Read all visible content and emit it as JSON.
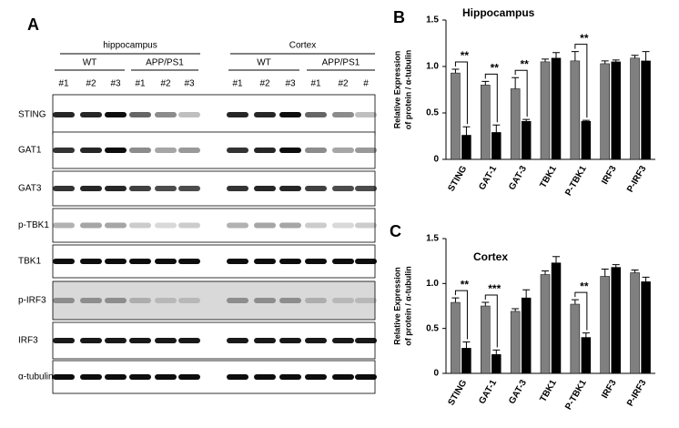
{
  "blot": {
    "panel_label": "A",
    "groups": [
      {
        "name": "hippocampus",
        "subgroups": [
          {
            "name": "WT",
            "lanes": [
              "#1",
              "#2",
              "#3"
            ]
          },
          {
            "name": "APP/PS1",
            "lanes": [
              "#1",
              "#2",
              "#3"
            ]
          }
        ]
      },
      {
        "name": "Cortex",
        "subgroups": [
          {
            "name": "WT",
            "lanes": [
              "#1",
              "#2",
              "#3"
            ]
          },
          {
            "name": "APP/PS1",
            "lanes": [
              "#1",
              "#2",
              "#"
            ]
          }
        ]
      }
    ],
    "rows": [
      "STING",
      "GAT1",
      "GAT3",
      "p-TBK1",
      "TBK1",
      "p-IRF3",
      "IRF3",
      "α-tubulin"
    ]
  },
  "chart_data": [
    {
      "type": "bar",
      "panel_label": "B",
      "title": "Hippocampus",
      "ylabel": [
        "Relative Expression",
        "of protein / α-tubulin"
      ],
      "categories": [
        "STING",
        "GAT-1",
        "GAT-3",
        "TBK1",
        "P-TBK1",
        "IRF3",
        "P-IRF3"
      ],
      "series": [
        {
          "color": "#808080",
          "values": [
            0.93,
            0.8,
            0.76,
            1.05,
            1.06,
            1.03,
            1.09
          ],
          "errors": [
            0.04,
            0.04,
            0.12,
            0.03,
            0.1,
            0.03,
            0.03
          ]
        },
        {
          "color": "#000000",
          "values": [
            0.26,
            0.29,
            0.41,
            1.09,
            0.41,
            1.05,
            1.06
          ],
          "errors": [
            0.09,
            0.08,
            0.02,
            0.06,
            0.01,
            0.02,
            0.1
          ]
        }
      ],
      "annotations": [
        {
          "category": "STING",
          "text": "**"
        },
        {
          "category": "GAT-1",
          "text": "**"
        },
        {
          "category": "GAT-3",
          "text": "**"
        },
        {
          "category": "P-TBK1",
          "text": "**"
        }
      ],
      "ylim": [
        0,
        1.5
      ],
      "yticks": [
        0,
        0.5,
        {
          "value": 1,
          "label": "1.0"
        },
        1.5
      ]
    },
    {
      "type": "bar",
      "panel_label": "C",
      "title": "Cortex",
      "ylabel": [
        "Relative Expression",
        "of protein / α-tubulin"
      ],
      "categories": [
        "STING",
        "GAT-1",
        "GAT-3",
        "TBK1",
        "P-TBK1",
        "IRF3",
        "P-IRF3"
      ],
      "series": [
        {
          "color": "#808080",
          "values": [
            0.79,
            0.75,
            0.69,
            1.1,
            0.77,
            1.08,
            1.12
          ],
          "errors": [
            0.05,
            0.04,
            0.03,
            0.04,
            0.05,
            0.08,
            0.03
          ]
        },
        {
          "color": "#000000",
          "values": [
            0.28,
            0.21,
            0.84,
            1.23,
            0.4,
            1.18,
            1.02
          ],
          "errors": [
            0.07,
            0.05,
            0.09,
            0.07,
            0.05,
            0.03,
            0.05
          ]
        }
      ],
      "annotations": [
        {
          "category": "STING",
          "text": "**"
        },
        {
          "category": "GAT-1",
          "text": "***"
        },
        {
          "category": "P-TBK1",
          "text": "**"
        }
      ],
      "ylim": [
        0,
        1.5
      ],
      "yticks": [
        0,
        0.5,
        {
          "value": 1,
          "label": "1.0"
        },
        1.5
      ]
    }
  ]
}
